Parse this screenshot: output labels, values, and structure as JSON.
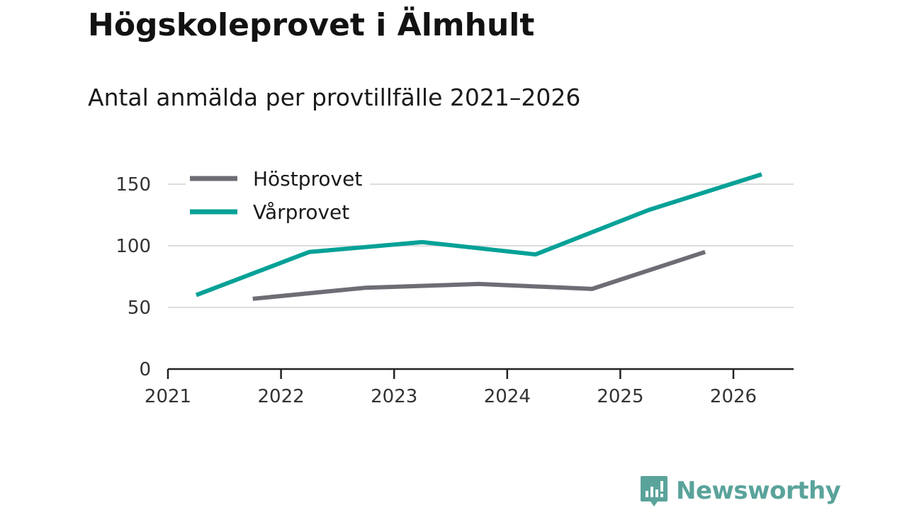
{
  "title": "Högskoleprovet i Älmhult",
  "subtitle": "Antal anmälda per provtillfälle 2021–2026",
  "brand": {
    "name": "Newsworthy",
    "color": "#5aa39b"
  },
  "colors": {
    "host": "#6e6c75",
    "var": "#05a197",
    "grid": "#dddddd",
    "axis": "#222222"
  },
  "chart_data": {
    "type": "line",
    "title": "Högskoleprovet i Älmhult",
    "subtitle": "Antal anmälda per provtillfälle 2021–2026",
    "xlabel": "",
    "ylabel": "",
    "x_ticks": [
      "2021",
      "2022",
      "2023",
      "2024",
      "2025",
      "2026"
    ],
    "y_ticks": [
      "0",
      "50",
      "100",
      "150"
    ],
    "xlim": [
      2021,
      2026.6
    ],
    "ylim": [
      0,
      150
    ],
    "legend": "top-left",
    "grid": true,
    "series": [
      {
        "name": "Höstprovet",
        "color": "#6e6c75",
        "x": [
          2021.75,
          2022.75,
          2023.75,
          2024.75,
          2025.75
        ],
        "values": [
          57,
          66,
          69,
          65,
          95
        ]
      },
      {
        "name": "Vårprovet",
        "color": "#05a197",
        "x": [
          2021.25,
          2022.25,
          2023.25,
          2024.25,
          2025.25,
          2026.25
        ],
        "values": [
          60,
          95,
          103,
          93,
          129,
          158
        ]
      }
    ]
  }
}
